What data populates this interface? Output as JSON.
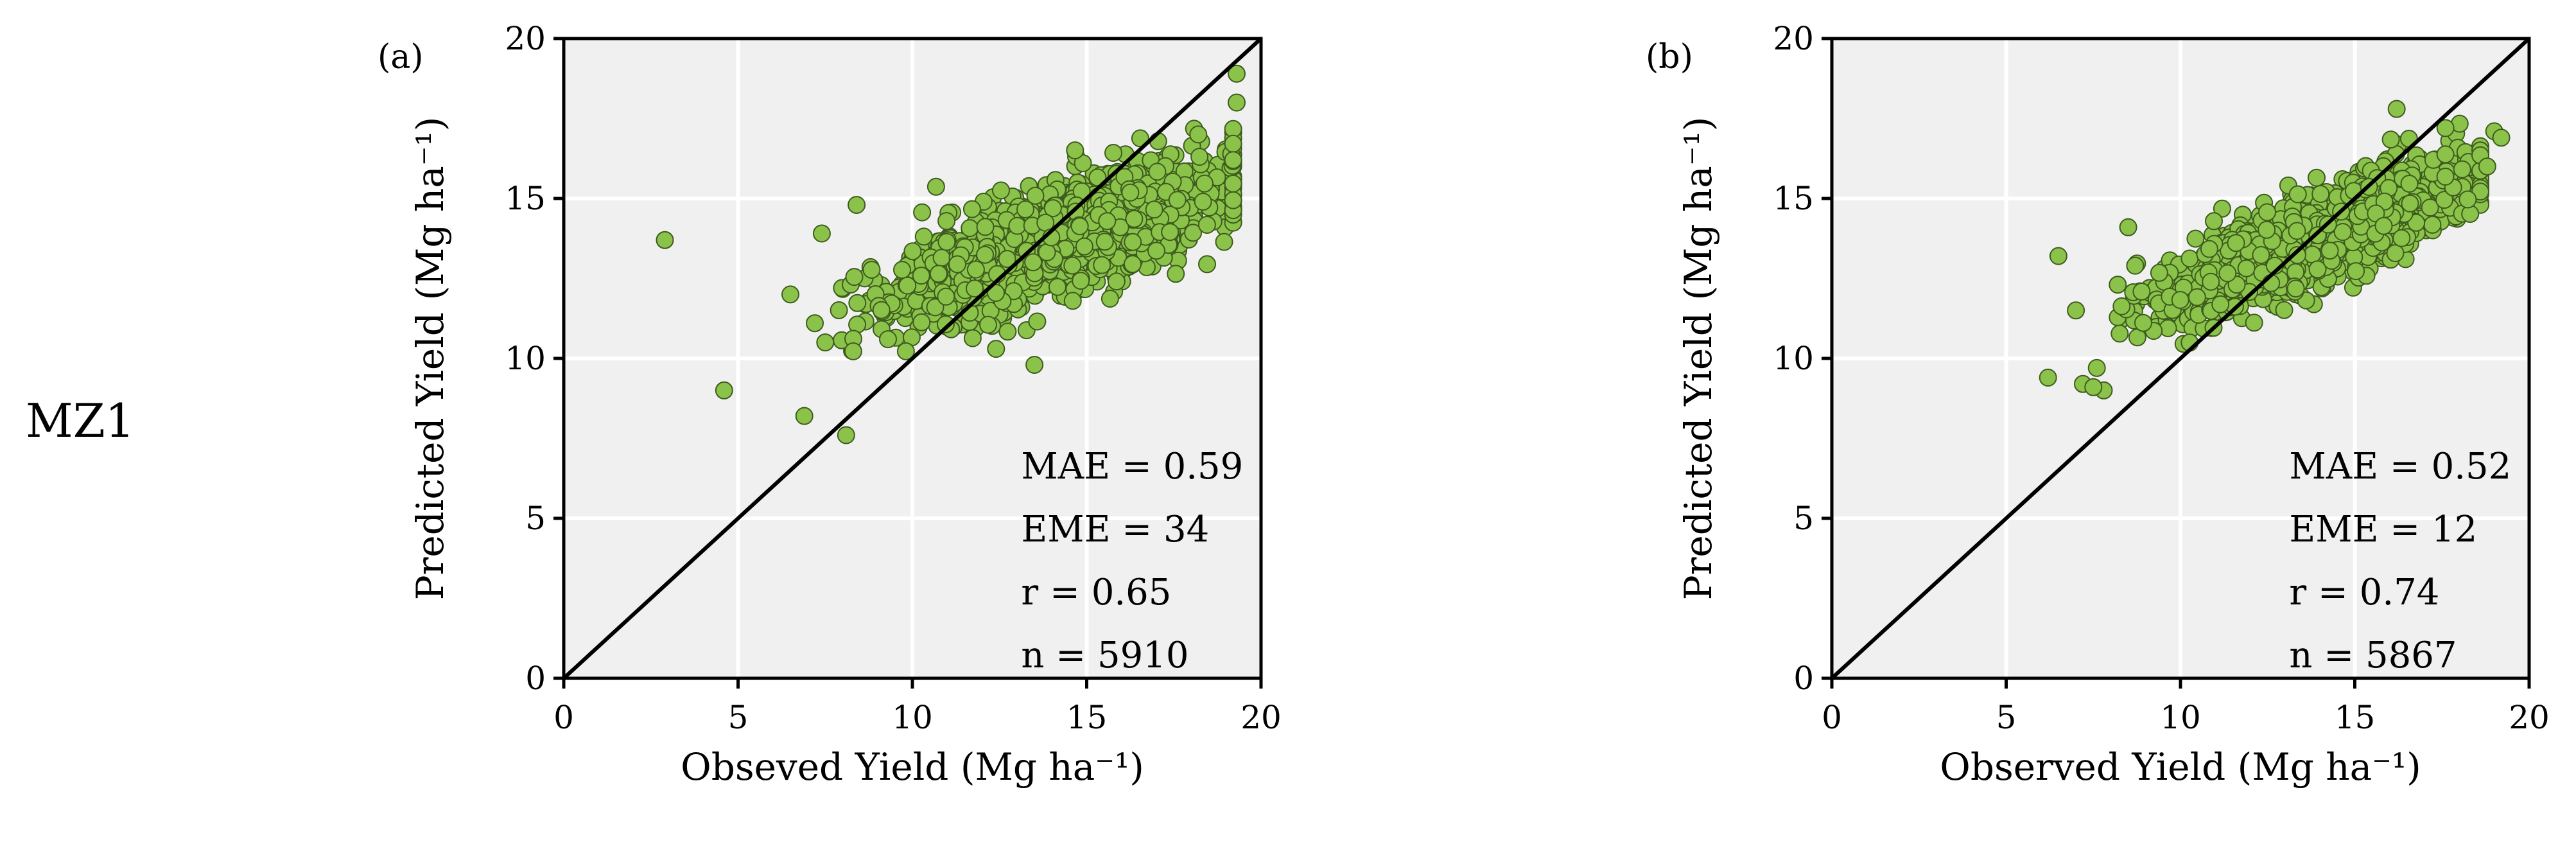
{
  "row_label": "MZ1",
  "chart_data": [
    {
      "type": "scatter",
      "panel": "(a)",
      "xlabel": "Obseved Yield (Mg ha⁻¹)",
      "ylabel": "Predicted Yield (Mg ha⁻¹)",
      "xlim": [
        0,
        20
      ],
      "ylim": [
        0,
        20
      ],
      "xticks": [
        0,
        5,
        10,
        15,
        20
      ],
      "yticks": [
        0,
        5,
        10,
        15,
        20
      ],
      "grid": true,
      "reference_line": "1:1",
      "point_color": "#8bc34a",
      "stats": [
        "MAE = 0.59",
        "EME = 34",
        "r = 0.65",
        "n = 5910"
      ],
      "n": 5910,
      "x_center": 14.2,
      "x_spread": 2.2,
      "slope": 0.36,
      "intercept": 8.6,
      "noise": 0.78,
      "x_min": 7.0,
      "x_max": 19.2,
      "seed": 11,
      "outliers": [
        [
          2.9,
          13.7
        ],
        [
          4.6,
          9.0
        ],
        [
          6.5,
          12.0
        ],
        [
          6.9,
          8.2
        ],
        [
          8.1,
          7.6
        ],
        [
          7.2,
          11.1
        ],
        [
          7.5,
          10.5
        ],
        [
          8.4,
          14.8
        ],
        [
          9.3,
          10.6
        ],
        [
          19.3,
          18.9
        ],
        [
          19.3,
          18.0
        ],
        [
          18.2,
          17.0
        ],
        [
          19.2,
          16.2
        ],
        [
          12.4,
          10.3
        ],
        [
          13.5,
          9.8
        ],
        [
          14.6,
          11.8
        ]
      ]
    },
    {
      "type": "scatter",
      "panel": "(b)",
      "xlabel": "Observed Yield (Mg ha⁻¹)",
      "ylabel": "Predicted Yield (Mg ha⁻¹)",
      "xlim": [
        0,
        20
      ],
      "ylim": [
        0,
        20
      ],
      "xticks": [
        0,
        5,
        10,
        15,
        20
      ],
      "yticks": [
        0,
        5,
        10,
        15,
        20
      ],
      "grid": true,
      "reference_line": "1:1",
      "point_color": "#8bc34a",
      "stats": [
        "MAE = 0.52",
        "EME = 12",
        "r = 0.74",
        "n = 5867"
      ],
      "n": 5867,
      "x_center": 14.0,
      "x_spread": 2.1,
      "slope": 0.42,
      "intercept": 7.9,
      "noise": 0.62,
      "x_min": 8.2,
      "x_max": 18.6,
      "seed": 23,
      "outliers": [
        [
          6.2,
          9.4
        ],
        [
          6.5,
          13.2
        ],
        [
          7.0,
          11.5
        ],
        [
          7.2,
          9.2
        ],
        [
          7.6,
          9.7
        ],
        [
          7.8,
          9.0
        ],
        [
          7.5,
          9.1
        ],
        [
          16.2,
          17.8
        ],
        [
          17.6,
          17.2
        ],
        [
          19.0,
          17.1
        ],
        [
          19.2,
          16.9
        ],
        [
          18.8,
          16.0
        ],
        [
          8.5,
          14.1
        ],
        [
          8.7,
          12.9
        ]
      ]
    }
  ]
}
